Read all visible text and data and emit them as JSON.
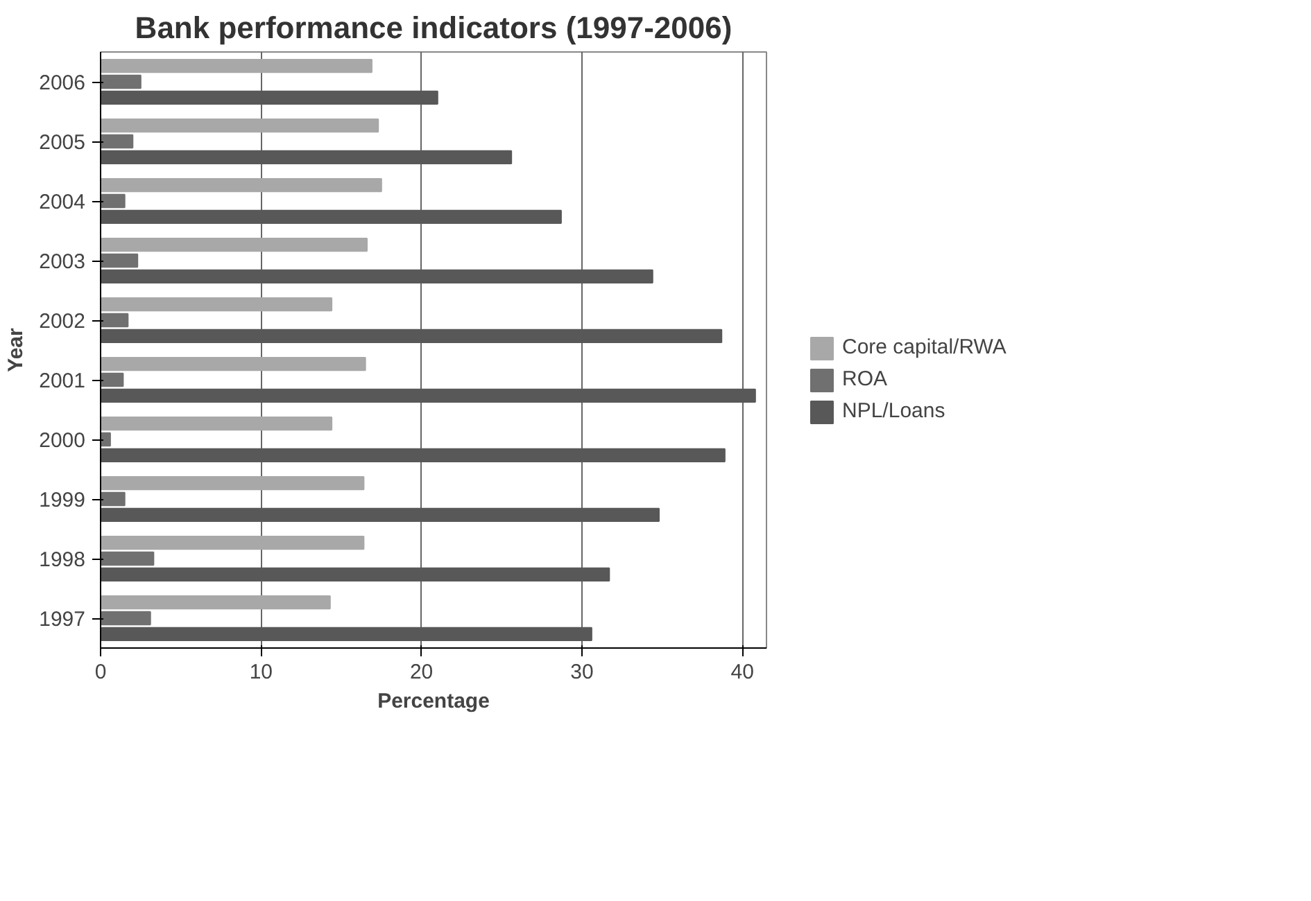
{
  "chart_data": {
    "type": "bar",
    "orientation": "horizontal",
    "title": "Bank performance indicators (1997-2006)",
    "xlabel": "Percentage",
    "ylabel": "Year",
    "categories": [
      "2006",
      "2005",
      "2004",
      "2003",
      "2002",
      "2001",
      "2000",
      "1999",
      "1998",
      "1997"
    ],
    "series": [
      {
        "name": "Core capital/RWA",
        "color": "#a8a8a8",
        "values": [
          16.9,
          17.3,
          17.5,
          16.6,
          14.4,
          16.5,
          14.4,
          16.4,
          16.4,
          14.3
        ]
      },
      {
        "name": "ROA",
        "color": "#707070",
        "values": [
          2.5,
          2.0,
          1.5,
          2.3,
          1.7,
          1.4,
          0.6,
          1.5,
          3.3,
          3.1
        ]
      },
      {
        "name": "NPL/Loans",
        "color": "#585858",
        "values": [
          21.0,
          25.6,
          28.7,
          34.4,
          38.7,
          40.8,
          38.9,
          34.8,
          31.7,
          30.6
        ]
      }
    ],
    "xlim": [
      0,
      41.5
    ],
    "xticks": [
      0,
      10,
      20,
      30,
      40
    ],
    "grid": "x",
    "legend": "right"
  }
}
